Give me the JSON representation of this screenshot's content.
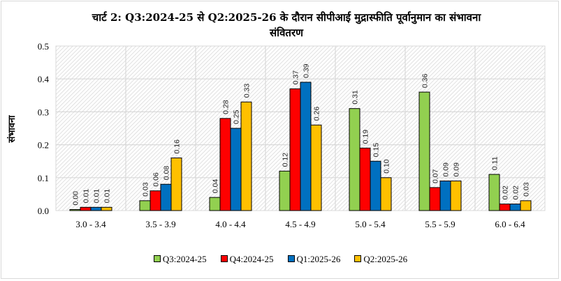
{
  "chart_data": {
    "type": "bar",
    "title_line1": "चार्ट 2:  Q3:2024-25 से Q2:2025-26 के दौरान सीपीआई मुद्रास्फीति पूर्वानुमान का संभावना",
    "title_line2": "संवितरण",
    "ylabel": "संभावना",
    "xlabel": "",
    "ylim": [
      0,
      0.5
    ],
    "yticks": [
      "0.0",
      "0.1",
      "0.2",
      "0.3",
      "0.4",
      "0.5"
    ],
    "categories": [
      "3.0 - 3.4",
      "3.5 - 3.9",
      "4.0 - 4.4",
      "4.5 - 4.9",
      "5.0 - 5.4",
      "5.5 - 5.9",
      "6.0 - 6.4"
    ],
    "series": [
      {
        "name": "Q3:2024-25",
        "color": "#92d050",
        "values": [
          0.0,
          0.03,
          0.04,
          0.12,
          0.31,
          0.36,
          0.11
        ],
        "labels": [
          "0.00",
          "0.03",
          "0.04",
          "0.12",
          "0.31",
          "0.36",
          "0.11"
        ]
      },
      {
        "name": "Q4:2024-25",
        "color": "#ff0000",
        "values": [
          0.01,
          0.06,
          0.28,
          0.37,
          0.19,
          0.07,
          0.02
        ],
        "labels": [
          "0.01",
          "0.06",
          "0.28",
          "0.37",
          "0.19",
          "0.07",
          "0.02"
        ]
      },
      {
        "name": "Q1:2025-26",
        "color": "#0070c0",
        "values": [
          0.01,
          0.08,
          0.25,
          0.39,
          0.15,
          0.09,
          0.02
        ],
        "labels": [
          "0.01",
          "0.08",
          "0.25",
          "0.39",
          "0.15",
          "0.09",
          "0.02"
        ]
      },
      {
        "name": "Q2:2025-26",
        "color": "#ffc000",
        "values": [
          0.01,
          0.16,
          0.33,
          0.26,
          0.1,
          0.09,
          0.03
        ],
        "labels": [
          "0.01",
          "0.16",
          "0.33",
          "0.26",
          "0.10",
          "0.09",
          "0.03"
        ]
      }
    ],
    "grid": true,
    "legend_position": "bottom"
  }
}
